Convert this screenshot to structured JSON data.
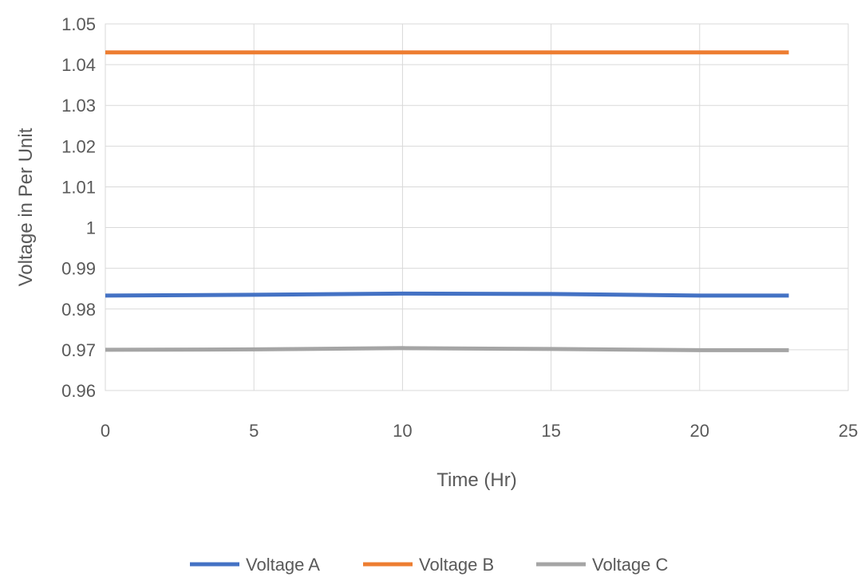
{
  "chart_data": {
    "type": "line",
    "title": "",
    "xlabel": "Time (Hr)",
    "ylabel": "Voltage in Per Unit",
    "xlim": [
      0,
      25
    ],
    "ylim": [
      0.96,
      1.05
    ],
    "x_ticks": [
      0,
      5,
      10,
      15,
      20,
      25
    ],
    "y_ticks": [
      0.96,
      0.97,
      0.98,
      0.99,
      1,
      1.01,
      1.02,
      1.03,
      1.04,
      1.05
    ],
    "x_tick_labels": [
      "0",
      "5",
      "10",
      "15",
      "20",
      "25"
    ],
    "y_tick_labels": [
      "0.96",
      "0.97",
      "0.98",
      "0.99",
      "1",
      "1.01",
      "1.02",
      "1.03",
      "1.04",
      "1.05"
    ],
    "grid": true,
    "legend_position": "bottom",
    "x": [
      0,
      5,
      10,
      15,
      20,
      23
    ],
    "series": [
      {
        "name": "Voltage A",
        "color": "#4472c4",
        "values": [
          0.9833,
          0.9835,
          0.9838,
          0.9837,
          0.9833,
          0.9833
        ]
      },
      {
        "name": "Voltage B",
        "color": "#ed7d31",
        "values": [
          1.043,
          1.043,
          1.043,
          1.043,
          1.043,
          1.043
        ]
      },
      {
        "name": "Voltage C",
        "color": "#a5a5a5",
        "values": [
          0.97,
          0.9701,
          0.9704,
          0.9702,
          0.9699,
          0.9699
        ]
      }
    ]
  }
}
